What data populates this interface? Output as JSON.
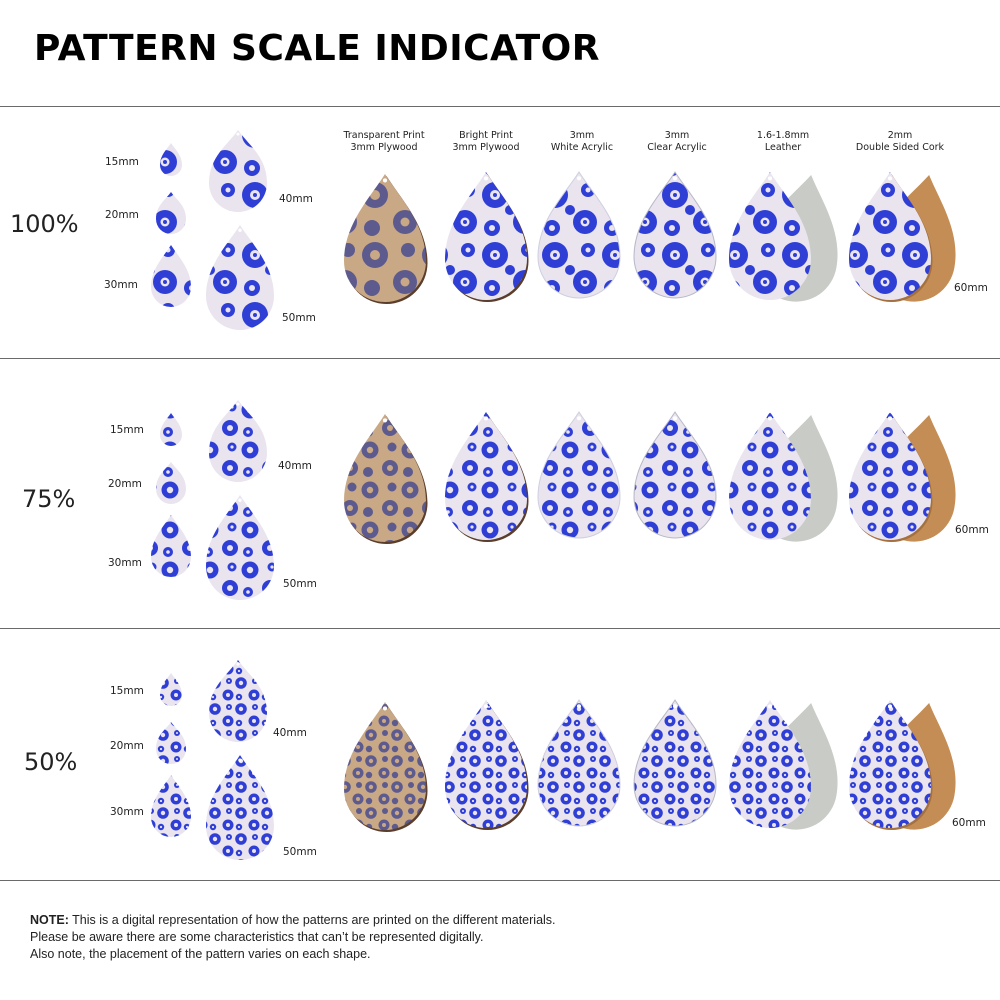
{
  "page": {
    "title": "PATTERN SCALE INDICATOR"
  },
  "materials": [
    {
      "line1": "Transparent Print",
      "line2": "3mm Plywood"
    },
    {
      "line1": "Bright Print",
      "line2": "3mm Plywood"
    },
    {
      "line1": "3mm",
      "line2": "White Acrylic"
    },
    {
      "line1": "3mm",
      "line2": "Clear Acrylic"
    },
    {
      "line1": "1.6-1.8mm",
      "line2": "Leather"
    },
    {
      "line1": "2mm",
      "line2": "Double Sided Cork"
    }
  ],
  "sizes": {
    "s15": "15mm",
    "s20": "20mm",
    "s30": "30mm",
    "s40": "40mm",
    "s50": "50mm",
    "s60": "60mm"
  },
  "sections": [
    {
      "scale": "100%"
    },
    {
      "scale": "75%"
    },
    {
      "scale": "50%"
    }
  ],
  "colors": {
    "pattern_blue": "#2f3fd6",
    "pattern_light": "#e9e4ee",
    "plywood": "#c9a886",
    "plywood_dark": "#5a3d2a",
    "leather_back": "#c8cbc6",
    "cork": "#c48d55",
    "divider": "#6a6a6a"
  },
  "note": {
    "label": "NOTE:",
    "line1": "This is a digital representation of how the patterns are printed on the different materials.",
    "line2": "Please be aware there are some characteristics that can’t be represented digitally.",
    "line3": "Also note, the placement of the pattern varies on each shape."
  }
}
